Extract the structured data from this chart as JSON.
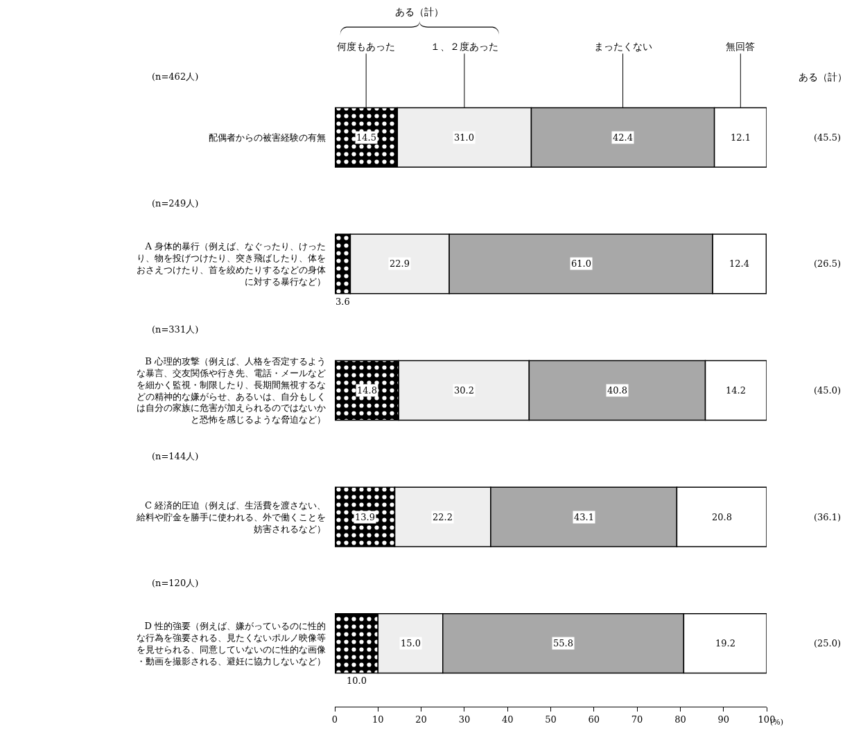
{
  "chart_data": {
    "type": "bar",
    "orientation": "horizontal",
    "stacked": true,
    "categories": [
      "配偶者からの被害経験の有無",
      "A 身体的暴行（例えば、なぐったり、けったり、物を投げつけたり、突き飛ばしたり、体をおさえつけたり、首を絞めたりするなどの身体に対する暴行など）",
      "B 心理的攻撃（例えば、人格を否定するような暴言、交友関係や行き先、電話・メールなどを細かく監視・制限したり、長期間無視するなどの精神的な嫌がらせ、あるいは、自分もしくは自分の家族に危害が加えられるのではないかと恐怖を感じるような脅迫など）",
      "C 経済的圧迫（例えば、生活費を渡さない、給料や貯金を勝手に使われる、外で働くことを妨害されるなど）",
      "D 性的強要（例えば、嫌がっているのに性的な行為を強要される、見たくないポルノ映像等を見せられる、同意していないのに性的な画像・動画を撮影される、避妊に協力しないなど）"
    ],
    "series": [
      {
        "name": "何度もあった",
        "color": "#000000",
        "values": [
          14.5,
          3.6,
          14.8,
          13.9,
          10.0
        ],
        "value_labels": [
          "14.5",
          "3.6",
          "14.8",
          "13.9",
          "10.0"
        ]
      },
      {
        "name": "１、２度あった",
        "color": "#eeeeee",
        "values": [
          31.0,
          22.9,
          30.2,
          22.2,
          15.0
        ],
        "value_labels": [
          "31.0",
          "22.9",
          "30.2",
          "22.2",
          "15.0"
        ]
      },
      {
        "name": "まったくない",
        "color": "#a8a8a8",
        "values": [
          42.4,
          61.0,
          40.8,
          43.1,
          55.8
        ],
        "value_labels": [
          "42.4",
          "61.0",
          "40.8",
          "43.1",
          "55.8"
        ]
      },
      {
        "name": "無回答",
        "color": "#ffffff",
        "values": [
          12.1,
          12.4,
          14.2,
          20.8,
          19.2
        ],
        "value_labels": [
          "12.1",
          "12.4",
          "14.2",
          "20.8",
          "19.2"
        ]
      }
    ],
    "xlabel": "(%)",
    "xlim": [
      0,
      100
    ],
    "xticks": [
      0,
      10,
      20,
      30,
      40,
      50,
      60,
      70,
      80,
      90,
      100
    ],
    "grid": false,
    "annotations": [
      "(n=462人)",
      "(n=249人)",
      "(n=331人)",
      "(n=144人)",
      "(n=120人)",
      "ある（計）",
      "ある（計）",
      "(45.5)",
      "(26.5)",
      "(45.0)",
      "(36.1)",
      "(25.0)"
    ]
  }
}
